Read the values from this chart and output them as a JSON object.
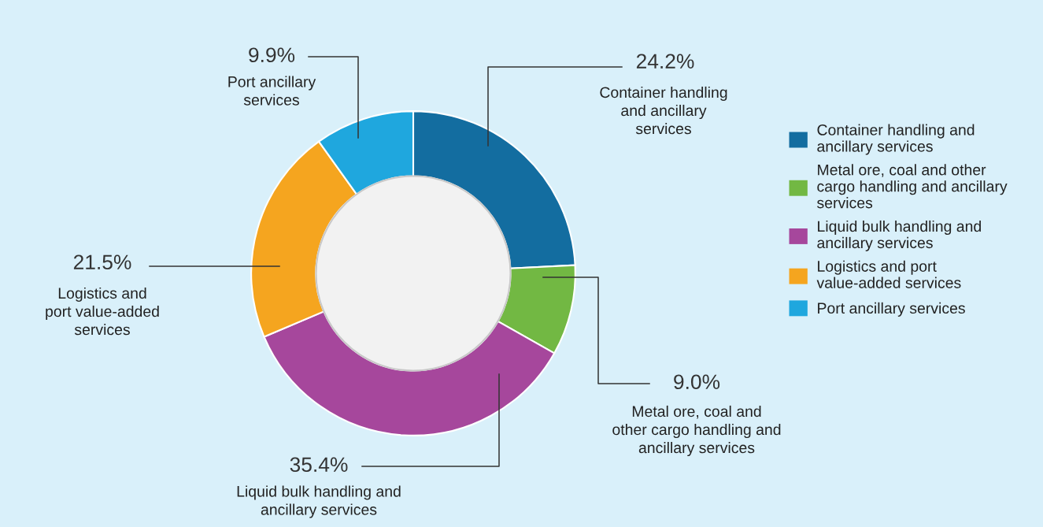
{
  "chart_data": {
    "type": "donut",
    "categories": [
      "Container handling and\nancillary services",
      "Metal ore, coal and other\ncargo handling and ancillary\nservices",
      "Liquid bulk handling and\nancillary services",
      "Logistics and port\nvalue-added services",
      "Port ancillary services"
    ],
    "values": [
      24.2,
      9.0,
      35.4,
      21.5,
      9.9
    ],
    "colors": [
      "#136da0",
      "#72b843",
      "#a6479c",
      "#f5a51f",
      "#1fa7de"
    ],
    "value_labels": [
      "24.2%",
      "9.0%",
      "35.4%",
      "21.5%",
      "9.9%"
    ],
    "annotations": [
      "Container handling\nand ancillary\nservices",
      "Metal ore, coal and\nother cargo handling and\nancillary services",
      "Liquid bulk handling and\nancillary services",
      "Logistics and\nport value-added\nservices",
      "Port ancillary\nservices"
    ],
    "legend": "right"
  }
}
